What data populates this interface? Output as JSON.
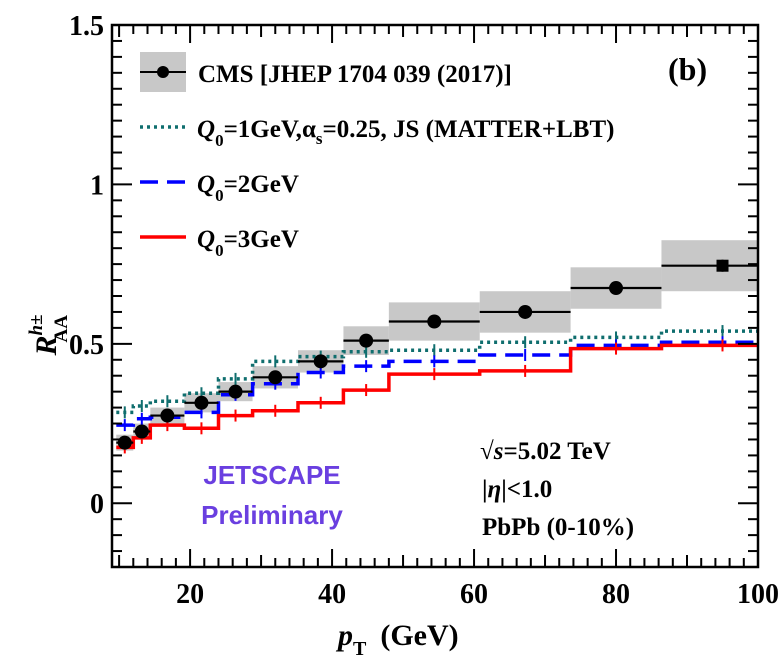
{
  "chart_data": {
    "type": "line",
    "panel_label": "(b)",
    "xlabel": {
      "main": "p",
      "sub": "T",
      "unit": "(GeV)"
    },
    "ylabel": {
      "main": "R",
      "sup": "h±",
      "sub": "AA"
    },
    "xlim": [
      9,
      100
    ],
    "ylim": [
      -0.2,
      1.5
    ],
    "x_ticks": [
      20,
      40,
      60,
      80,
      100
    ],
    "x_tick_labels": [
      "20",
      "40",
      "60",
      "80",
      "100"
    ],
    "y_ticks": [
      0,
      0.5,
      1,
      1.5
    ],
    "y_tick_labels": [
      "0",
      "0.5",
      "1",
      "1.5"
    ],
    "bin_edges": [
      9.6,
      12,
      14.4,
      19.2,
      24,
      28.8,
      35.2,
      41.6,
      48,
      60.8,
      73.6,
      86.4,
      103.6
    ],
    "cms": {
      "name": "CMS [JHEP 1704 039 (2017)]",
      "color": "#000000",
      "box_color": "#c8c8c8",
      "x": [
        10.8,
        13.2,
        16.8,
        21.6,
        26.4,
        32,
        38.4,
        44.8,
        54.4,
        67.2,
        80,
        95
      ],
      "y": [
        0.19,
        0.225,
        0.275,
        0.315,
        0.35,
        0.395,
        0.445,
        0.51,
        0.57,
        0.6,
        0.675,
        0.745
      ],
      "syst": [
        0.025,
        0.025,
        0.025,
        0.03,
        0.03,
        0.035,
        0.035,
        0.045,
        0.06,
        0.065,
        0.065,
        0.08
      ]
    },
    "series": [
      {
        "name": "Q0=1GeV, alpha_s=0.25, JS (MATTER+LBT)",
        "label_parts": {
          "q": "Q",
          "sub": "0",
          "rest_a": "=1GeV,",
          "alpha": "α",
          "alpha_sub": "s",
          "rest_b": "=0.25, JS (MATTER+LBT)"
        },
        "color": "#0f6e6e",
        "dash": "3,4",
        "values": [
          0.285,
          0.305,
          0.32,
          0.345,
          0.39,
          0.445,
          0.46,
          0.475,
          0.48,
          0.505,
          0.52,
          0.54
        ]
      },
      {
        "name": "Q0=2GeV",
        "label_parts": {
          "q": "Q",
          "sub": "0",
          "rest": "=2GeV"
        },
        "color": "#0000ff",
        "dash": "18,9",
        "values": [
          0.245,
          0.265,
          0.27,
          0.285,
          0.34,
          0.375,
          0.41,
          0.43,
          0.445,
          0.465,
          0.495,
          0.505
        ]
      },
      {
        "name": "Q0=3GeV",
        "label_parts": {
          "q": "Q",
          "sub": "0",
          "rest": "=3GeV"
        },
        "color": "#ff0000",
        "dash": "",
        "values": [
          0.175,
          0.205,
          0.245,
          0.235,
          0.275,
          0.29,
          0.315,
          0.355,
          0.405,
          0.415,
          0.485,
          0.495
        ]
      }
    ],
    "annotations": {
      "sqrt": "√",
      "s": "s",
      "energy": "=5.02 TeV",
      "eta_a": "|",
      "eta": "η",
      "eta_b": "|<1.0",
      "system": "PbPb (0-10%)",
      "collab_1": "JETSCAPE",
      "collab_2": "Preliminary",
      "collab_color": "#6a3fe0"
    }
  }
}
